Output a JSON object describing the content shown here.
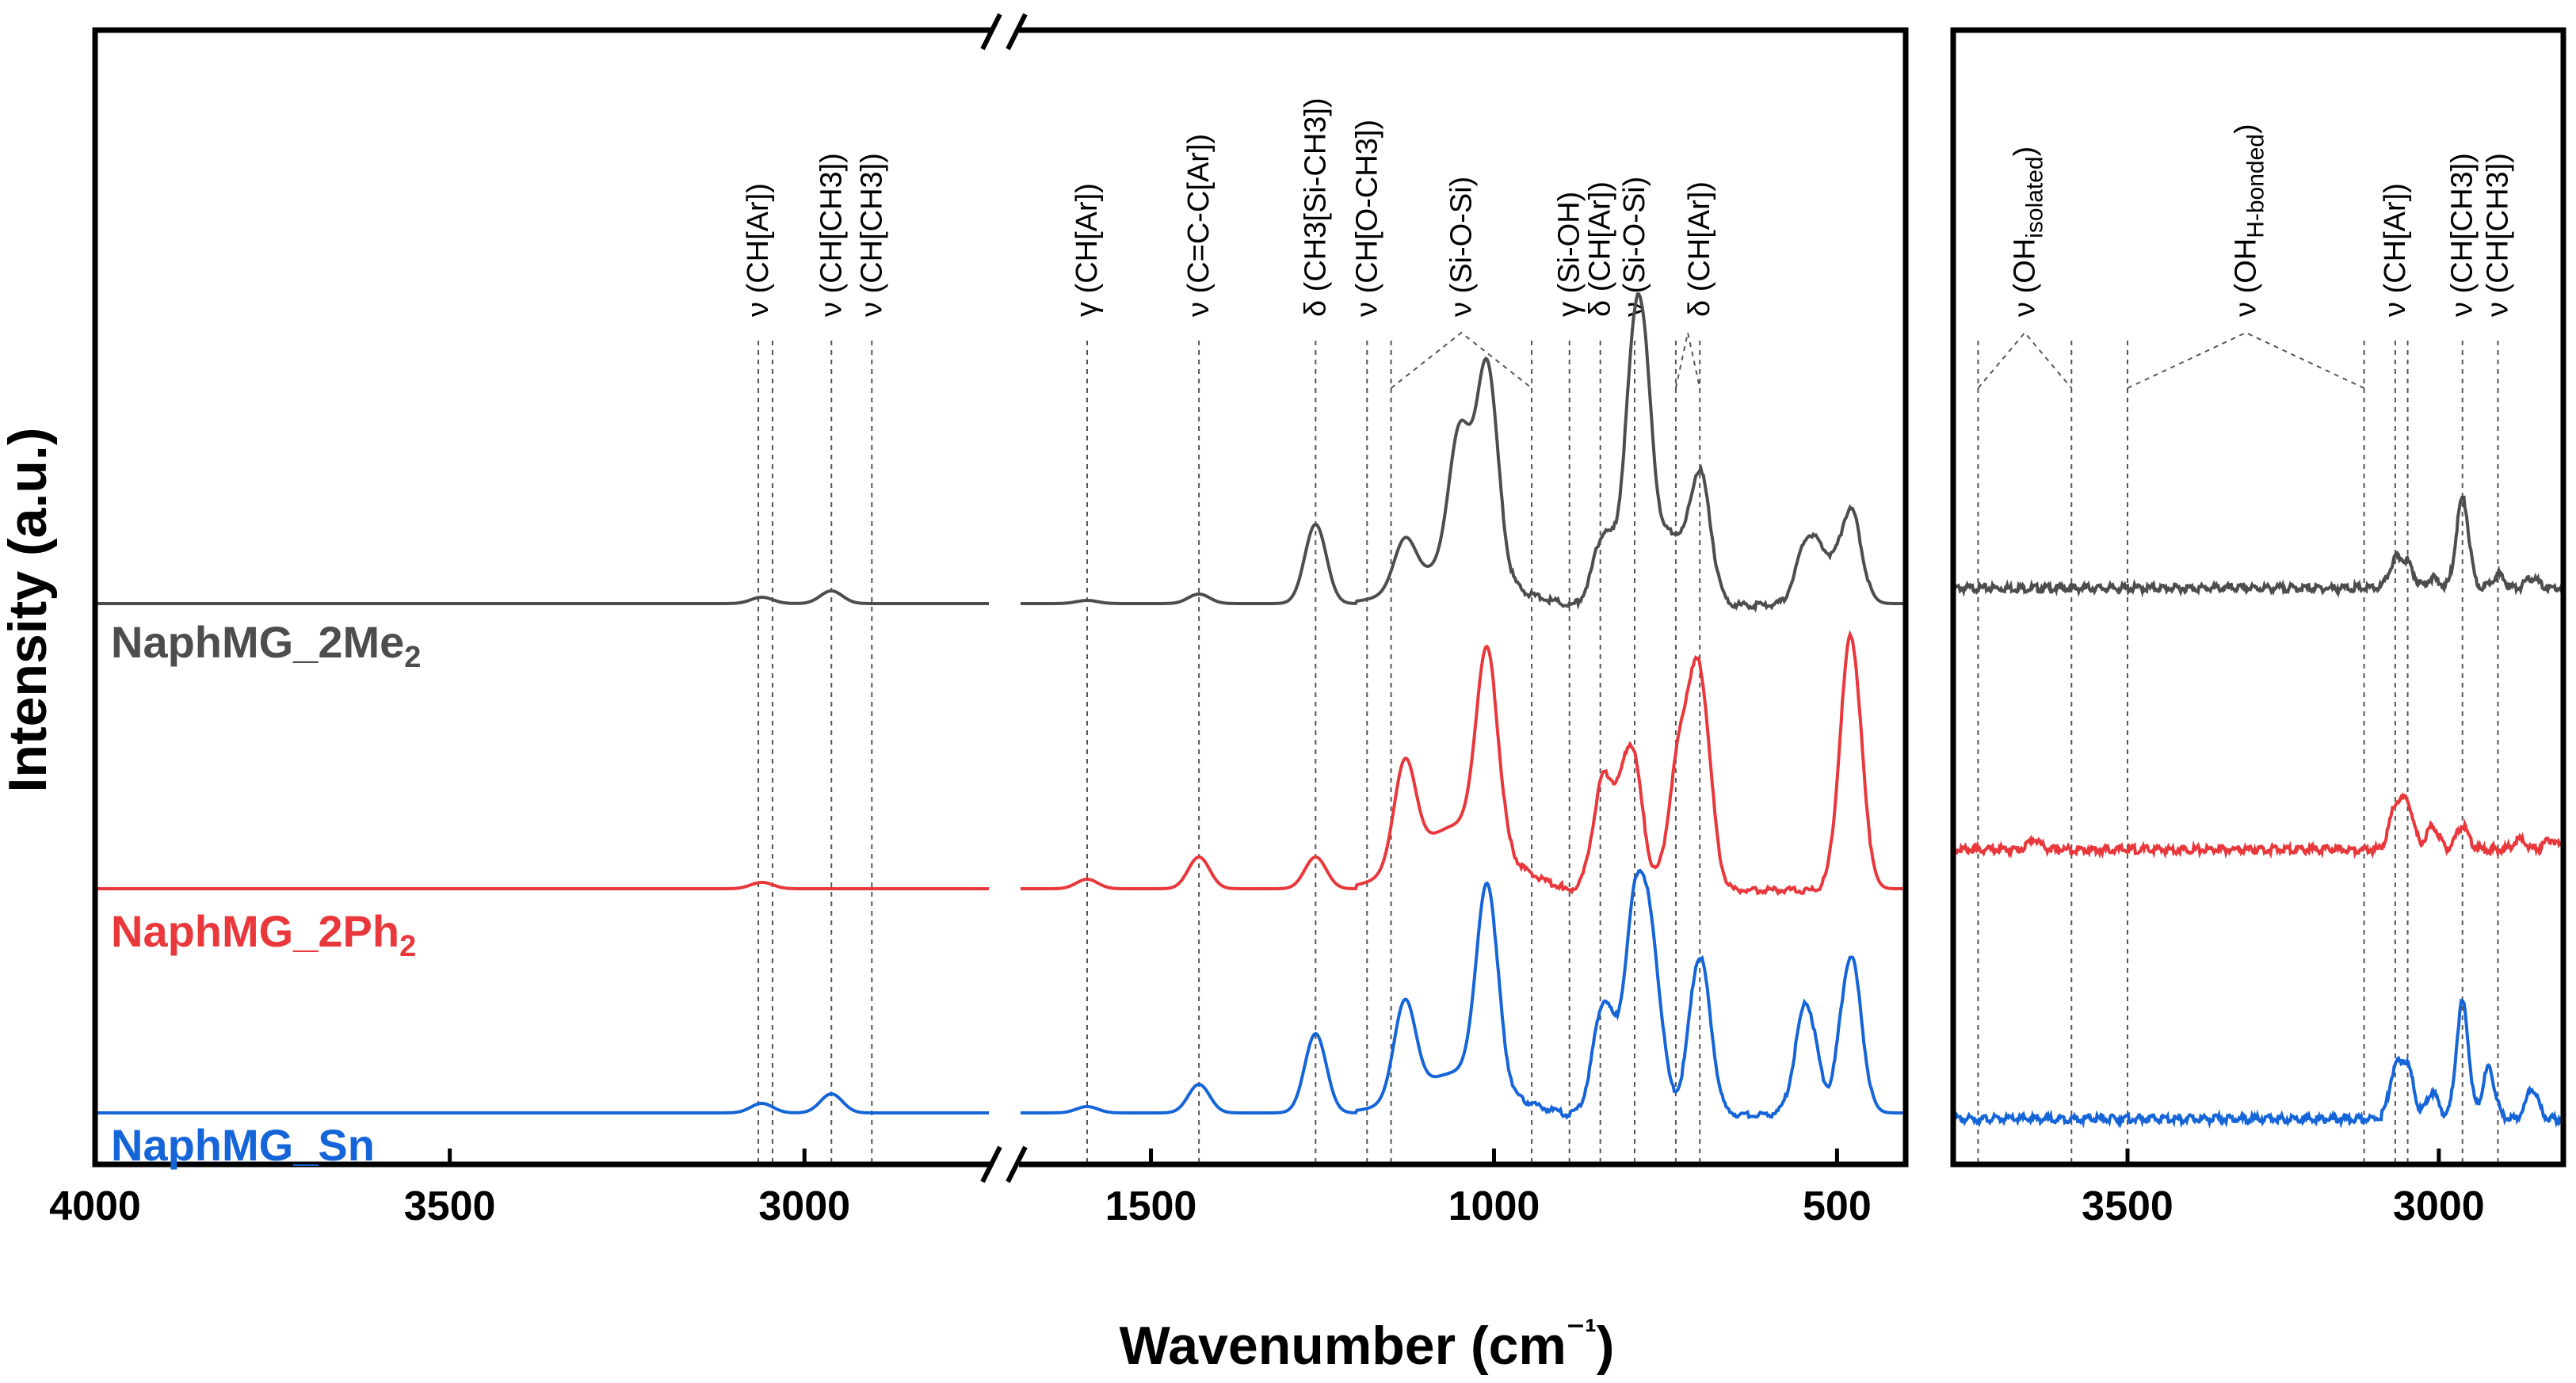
{
  "chart_data": {
    "type": "line",
    "title": "",
    "xlabel": "Wavenumber (cm⁻¹)",
    "ylabel": "Intensity (a.u.)",
    "series": [
      {
        "name": "NaphMG_2Me",
        "subscript": "2",
        "color": "#4d4d4d"
      },
      {
        "name": "NaphMG_2Ph",
        "subscript": "2",
        "color": "#e8383c"
      },
      {
        "name": "NaphMG_Sn",
        "subscript": "",
        "color": "#1565d8"
      }
    ],
    "panels": [
      {
        "id": "left",
        "segments": [
          [
            4000,
            2740
          ],
          [
            1690,
            400
          ]
        ],
        "xticks": [
          4000,
          3500,
          3000,
          1500,
          1000,
          500
        ],
        "axis_break": true,
        "bands": [
          {
            "pos": 3065,
            "label": "ν (CH[Ar])"
          },
          {
            "pos": 3045,
            "label": ""
          },
          {
            "pos": 2962,
            "label": "ν (CH[CH3])"
          },
          {
            "pos": 2905,
            "label": "ν (CH[CH3])"
          },
          {
            "pos": 1593,
            "label": "γ (CH[Ar])"
          },
          {
            "pos": 1430,
            "label": "ν (C=C-C[Ar])"
          },
          {
            "pos": 1260,
            "label": "δ (CH3[Si-CH3])"
          },
          {
            "pos": 1185,
            "label": "ν (CH[O-CH3])"
          },
          {
            "pos": 1150,
            "label": ""
          },
          {
            "pos": 945,
            "label": ""
          },
          {
            "pos": 890,
            "label": "γ (Si-OH)"
          },
          {
            "pos": 845,
            "label": "δ (CH[Ar])"
          },
          {
            "pos": 795,
            "label": "ν (Si-O-Si)"
          },
          {
            "pos": 735,
            "label": ""
          },
          {
            "pos": 700,
            "label": "δ (CH[Ar])"
          }
        ],
        "bracketed_labels": [
          {
            "range": [
              1150,
              945
            ],
            "label": "ν (Si-O-Si)"
          },
          {
            "range": [
              735,
              700
            ],
            "label": ""
          }
        ],
        "peaks": {
          "NaphMG_2Me": [
            [
              3060,
              0.02
            ],
            [
              2962,
              0.04
            ],
            [
              1593,
              0.01
            ],
            [
              1430,
              0.03
            ],
            [
              1260,
              0.25
            ],
            [
              1130,
              0.15
            ],
            [
              1050,
              0.42
            ],
            [
              1010,
              0.65
            ],
            [
              840,
              0.22
            ],
            [
              795,
              0.65
            ],
            [
              780,
              0.45
            ],
            [
              740,
              0.2
            ],
            [
              700,
              0.42
            ],
            [
              545,
              0.18
            ],
            [
              520,
              0.12
            ],
            [
              480,
              0.3
            ]
          ],
          "NaphMG_2Ph": [
            [
              3060,
              0.02
            ],
            [
              1593,
              0.03
            ],
            [
              1430,
              0.1
            ],
            [
              1260,
              0.1
            ],
            [
              1130,
              0.32
            ],
            [
              1010,
              0.6
            ],
            [
              840,
              0.35
            ],
            [
              800,
              0.45
            ],
            [
              730,
              0.4
            ],
            [
              700,
              0.65
            ],
            [
              480,
              0.8
            ]
          ],
          "NaphMG_Sn": [
            [
              3060,
              0.03
            ],
            [
              2962,
              0.06
            ],
            [
              1593,
              0.02
            ],
            [
              1430,
              0.09
            ],
            [
              1260,
              0.25
            ],
            [
              1130,
              0.3
            ],
            [
              1010,
              0.62
            ],
            [
              840,
              0.35
            ],
            [
              795,
              0.6
            ],
            [
              770,
              0.45
            ],
            [
              700,
              0.5
            ],
            [
              545,
              0.35
            ],
            [
              480,
              0.5
            ]
          ]
        }
      },
      {
        "id": "right",
        "range": [
          3780,
          2800
        ],
        "xticks": [
          3500,
          3000
        ],
        "bands": [
          {
            "pos": 3740,
            "label": ""
          },
          {
            "pos": 3590,
            "label": ""
          },
          {
            "pos": 3500,
            "label": ""
          },
          {
            "pos": 3120,
            "label": ""
          },
          {
            "pos": 3070,
            "label": "ν (CH[Ar])"
          },
          {
            "pos": 3050,
            "label": ""
          },
          {
            "pos": 2962,
            "label": "ν (CH[CH3])"
          },
          {
            "pos": 2905,
            "label": "ν (CH[CH3])"
          }
        ],
        "bracketed_labels": [
          {
            "range": [
              3740,
              3590
            ],
            "label": "ν (OH",
            "sub": "isolated",
            "tail": ")"
          },
          {
            "range": [
              3500,
              3120
            ],
            "label": "ν (OH",
            "sub": "H-bonded",
            "tail": ")"
          }
        ],
        "peaks": {
          "NaphMG_2Me": [
            [
              3070,
              0.08
            ],
            [
              3050,
              0.07
            ],
            [
              3010,
              0.03
            ],
            [
              2962,
              0.27
            ],
            [
              2905,
              0.04
            ],
            [
              2850,
              0.03
            ]
          ],
          "NaphMG_2Ph": [
            [
              3650,
              0.03
            ],
            [
              3070,
              0.12
            ],
            [
              3050,
              0.13
            ],
            [
              3010,
              0.07
            ],
            [
              2962,
              0.07
            ],
            [
              2870,
              0.03
            ],
            [
              2820,
              0.03
            ]
          ],
          "NaphMG_Sn": [
            [
              3070,
              0.14
            ],
            [
              3050,
              0.15
            ],
            [
              3010,
              0.08
            ],
            [
              2962,
              0.35
            ],
            [
              2920,
              0.15
            ],
            [
              2850,
              0.09
            ]
          ]
        }
      }
    ]
  }
}
